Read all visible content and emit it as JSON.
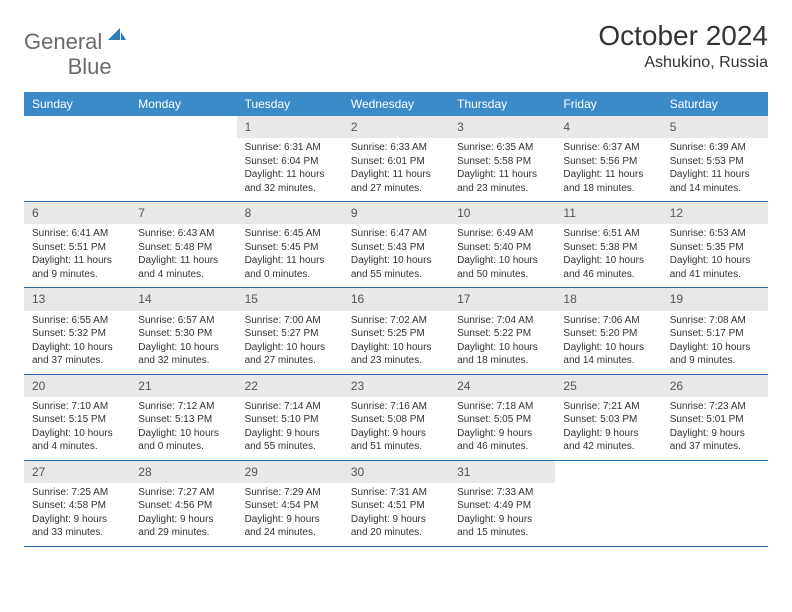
{
  "brand": {
    "name_part1": "General",
    "name_part2": "Blue",
    "logo_color": "#2b7bbf",
    "text_color_gray": "#6b6b6b"
  },
  "header": {
    "title": "October 2024",
    "location": "Ashukino, Russia"
  },
  "colors": {
    "header_bg": "#3b8bc9",
    "header_text": "#ffffff",
    "daynum_bg": "#e8e8e8",
    "week_border": "#2b6ca8",
    "body_text": "#333333"
  },
  "day_names": [
    "Sunday",
    "Monday",
    "Tuesday",
    "Wednesday",
    "Thursday",
    "Friday",
    "Saturday"
  ],
  "weeks": [
    [
      null,
      null,
      {
        "n": "1",
        "sunrise": "Sunrise: 6:31 AM",
        "sunset": "Sunset: 6:04 PM",
        "daylight1": "Daylight: 11 hours",
        "daylight2": "and 32 minutes."
      },
      {
        "n": "2",
        "sunrise": "Sunrise: 6:33 AM",
        "sunset": "Sunset: 6:01 PM",
        "daylight1": "Daylight: 11 hours",
        "daylight2": "and 27 minutes."
      },
      {
        "n": "3",
        "sunrise": "Sunrise: 6:35 AM",
        "sunset": "Sunset: 5:58 PM",
        "daylight1": "Daylight: 11 hours",
        "daylight2": "and 23 minutes."
      },
      {
        "n": "4",
        "sunrise": "Sunrise: 6:37 AM",
        "sunset": "Sunset: 5:56 PM",
        "daylight1": "Daylight: 11 hours",
        "daylight2": "and 18 minutes."
      },
      {
        "n": "5",
        "sunrise": "Sunrise: 6:39 AM",
        "sunset": "Sunset: 5:53 PM",
        "daylight1": "Daylight: 11 hours",
        "daylight2": "and 14 minutes."
      }
    ],
    [
      {
        "n": "6",
        "sunrise": "Sunrise: 6:41 AM",
        "sunset": "Sunset: 5:51 PM",
        "daylight1": "Daylight: 11 hours",
        "daylight2": "and 9 minutes."
      },
      {
        "n": "7",
        "sunrise": "Sunrise: 6:43 AM",
        "sunset": "Sunset: 5:48 PM",
        "daylight1": "Daylight: 11 hours",
        "daylight2": "and 4 minutes."
      },
      {
        "n": "8",
        "sunrise": "Sunrise: 6:45 AM",
        "sunset": "Sunset: 5:45 PM",
        "daylight1": "Daylight: 11 hours",
        "daylight2": "and 0 minutes."
      },
      {
        "n": "9",
        "sunrise": "Sunrise: 6:47 AM",
        "sunset": "Sunset: 5:43 PM",
        "daylight1": "Daylight: 10 hours",
        "daylight2": "and 55 minutes."
      },
      {
        "n": "10",
        "sunrise": "Sunrise: 6:49 AM",
        "sunset": "Sunset: 5:40 PM",
        "daylight1": "Daylight: 10 hours",
        "daylight2": "and 50 minutes."
      },
      {
        "n": "11",
        "sunrise": "Sunrise: 6:51 AM",
        "sunset": "Sunset: 5:38 PM",
        "daylight1": "Daylight: 10 hours",
        "daylight2": "and 46 minutes."
      },
      {
        "n": "12",
        "sunrise": "Sunrise: 6:53 AM",
        "sunset": "Sunset: 5:35 PM",
        "daylight1": "Daylight: 10 hours",
        "daylight2": "and 41 minutes."
      }
    ],
    [
      {
        "n": "13",
        "sunrise": "Sunrise: 6:55 AM",
        "sunset": "Sunset: 5:32 PM",
        "daylight1": "Daylight: 10 hours",
        "daylight2": "and 37 minutes."
      },
      {
        "n": "14",
        "sunrise": "Sunrise: 6:57 AM",
        "sunset": "Sunset: 5:30 PM",
        "daylight1": "Daylight: 10 hours",
        "daylight2": "and 32 minutes."
      },
      {
        "n": "15",
        "sunrise": "Sunrise: 7:00 AM",
        "sunset": "Sunset: 5:27 PM",
        "daylight1": "Daylight: 10 hours",
        "daylight2": "and 27 minutes."
      },
      {
        "n": "16",
        "sunrise": "Sunrise: 7:02 AM",
        "sunset": "Sunset: 5:25 PM",
        "daylight1": "Daylight: 10 hours",
        "daylight2": "and 23 minutes."
      },
      {
        "n": "17",
        "sunrise": "Sunrise: 7:04 AM",
        "sunset": "Sunset: 5:22 PM",
        "daylight1": "Daylight: 10 hours",
        "daylight2": "and 18 minutes."
      },
      {
        "n": "18",
        "sunrise": "Sunrise: 7:06 AM",
        "sunset": "Sunset: 5:20 PM",
        "daylight1": "Daylight: 10 hours",
        "daylight2": "and 14 minutes."
      },
      {
        "n": "19",
        "sunrise": "Sunrise: 7:08 AM",
        "sunset": "Sunset: 5:17 PM",
        "daylight1": "Daylight: 10 hours",
        "daylight2": "and 9 minutes."
      }
    ],
    [
      {
        "n": "20",
        "sunrise": "Sunrise: 7:10 AM",
        "sunset": "Sunset: 5:15 PM",
        "daylight1": "Daylight: 10 hours",
        "daylight2": "and 4 minutes."
      },
      {
        "n": "21",
        "sunrise": "Sunrise: 7:12 AM",
        "sunset": "Sunset: 5:13 PM",
        "daylight1": "Daylight: 10 hours",
        "daylight2": "and 0 minutes."
      },
      {
        "n": "22",
        "sunrise": "Sunrise: 7:14 AM",
        "sunset": "Sunset: 5:10 PM",
        "daylight1": "Daylight: 9 hours",
        "daylight2": "and 55 minutes."
      },
      {
        "n": "23",
        "sunrise": "Sunrise: 7:16 AM",
        "sunset": "Sunset: 5:08 PM",
        "daylight1": "Daylight: 9 hours",
        "daylight2": "and 51 minutes."
      },
      {
        "n": "24",
        "sunrise": "Sunrise: 7:18 AM",
        "sunset": "Sunset: 5:05 PM",
        "daylight1": "Daylight: 9 hours",
        "daylight2": "and 46 minutes."
      },
      {
        "n": "25",
        "sunrise": "Sunrise: 7:21 AM",
        "sunset": "Sunset: 5:03 PM",
        "daylight1": "Daylight: 9 hours",
        "daylight2": "and 42 minutes."
      },
      {
        "n": "26",
        "sunrise": "Sunrise: 7:23 AM",
        "sunset": "Sunset: 5:01 PM",
        "daylight1": "Daylight: 9 hours",
        "daylight2": "and 37 minutes."
      }
    ],
    [
      {
        "n": "27",
        "sunrise": "Sunrise: 7:25 AM",
        "sunset": "Sunset: 4:58 PM",
        "daylight1": "Daylight: 9 hours",
        "daylight2": "and 33 minutes."
      },
      {
        "n": "28",
        "sunrise": "Sunrise: 7:27 AM",
        "sunset": "Sunset: 4:56 PM",
        "daylight1": "Daylight: 9 hours",
        "daylight2": "and 29 minutes."
      },
      {
        "n": "29",
        "sunrise": "Sunrise: 7:29 AM",
        "sunset": "Sunset: 4:54 PM",
        "daylight1": "Daylight: 9 hours",
        "daylight2": "and 24 minutes."
      },
      {
        "n": "30",
        "sunrise": "Sunrise: 7:31 AM",
        "sunset": "Sunset: 4:51 PM",
        "daylight1": "Daylight: 9 hours",
        "daylight2": "and 20 minutes."
      },
      {
        "n": "31",
        "sunrise": "Sunrise: 7:33 AM",
        "sunset": "Sunset: 4:49 PM",
        "daylight1": "Daylight: 9 hours",
        "daylight2": "and 15 minutes."
      },
      null,
      null
    ]
  ]
}
